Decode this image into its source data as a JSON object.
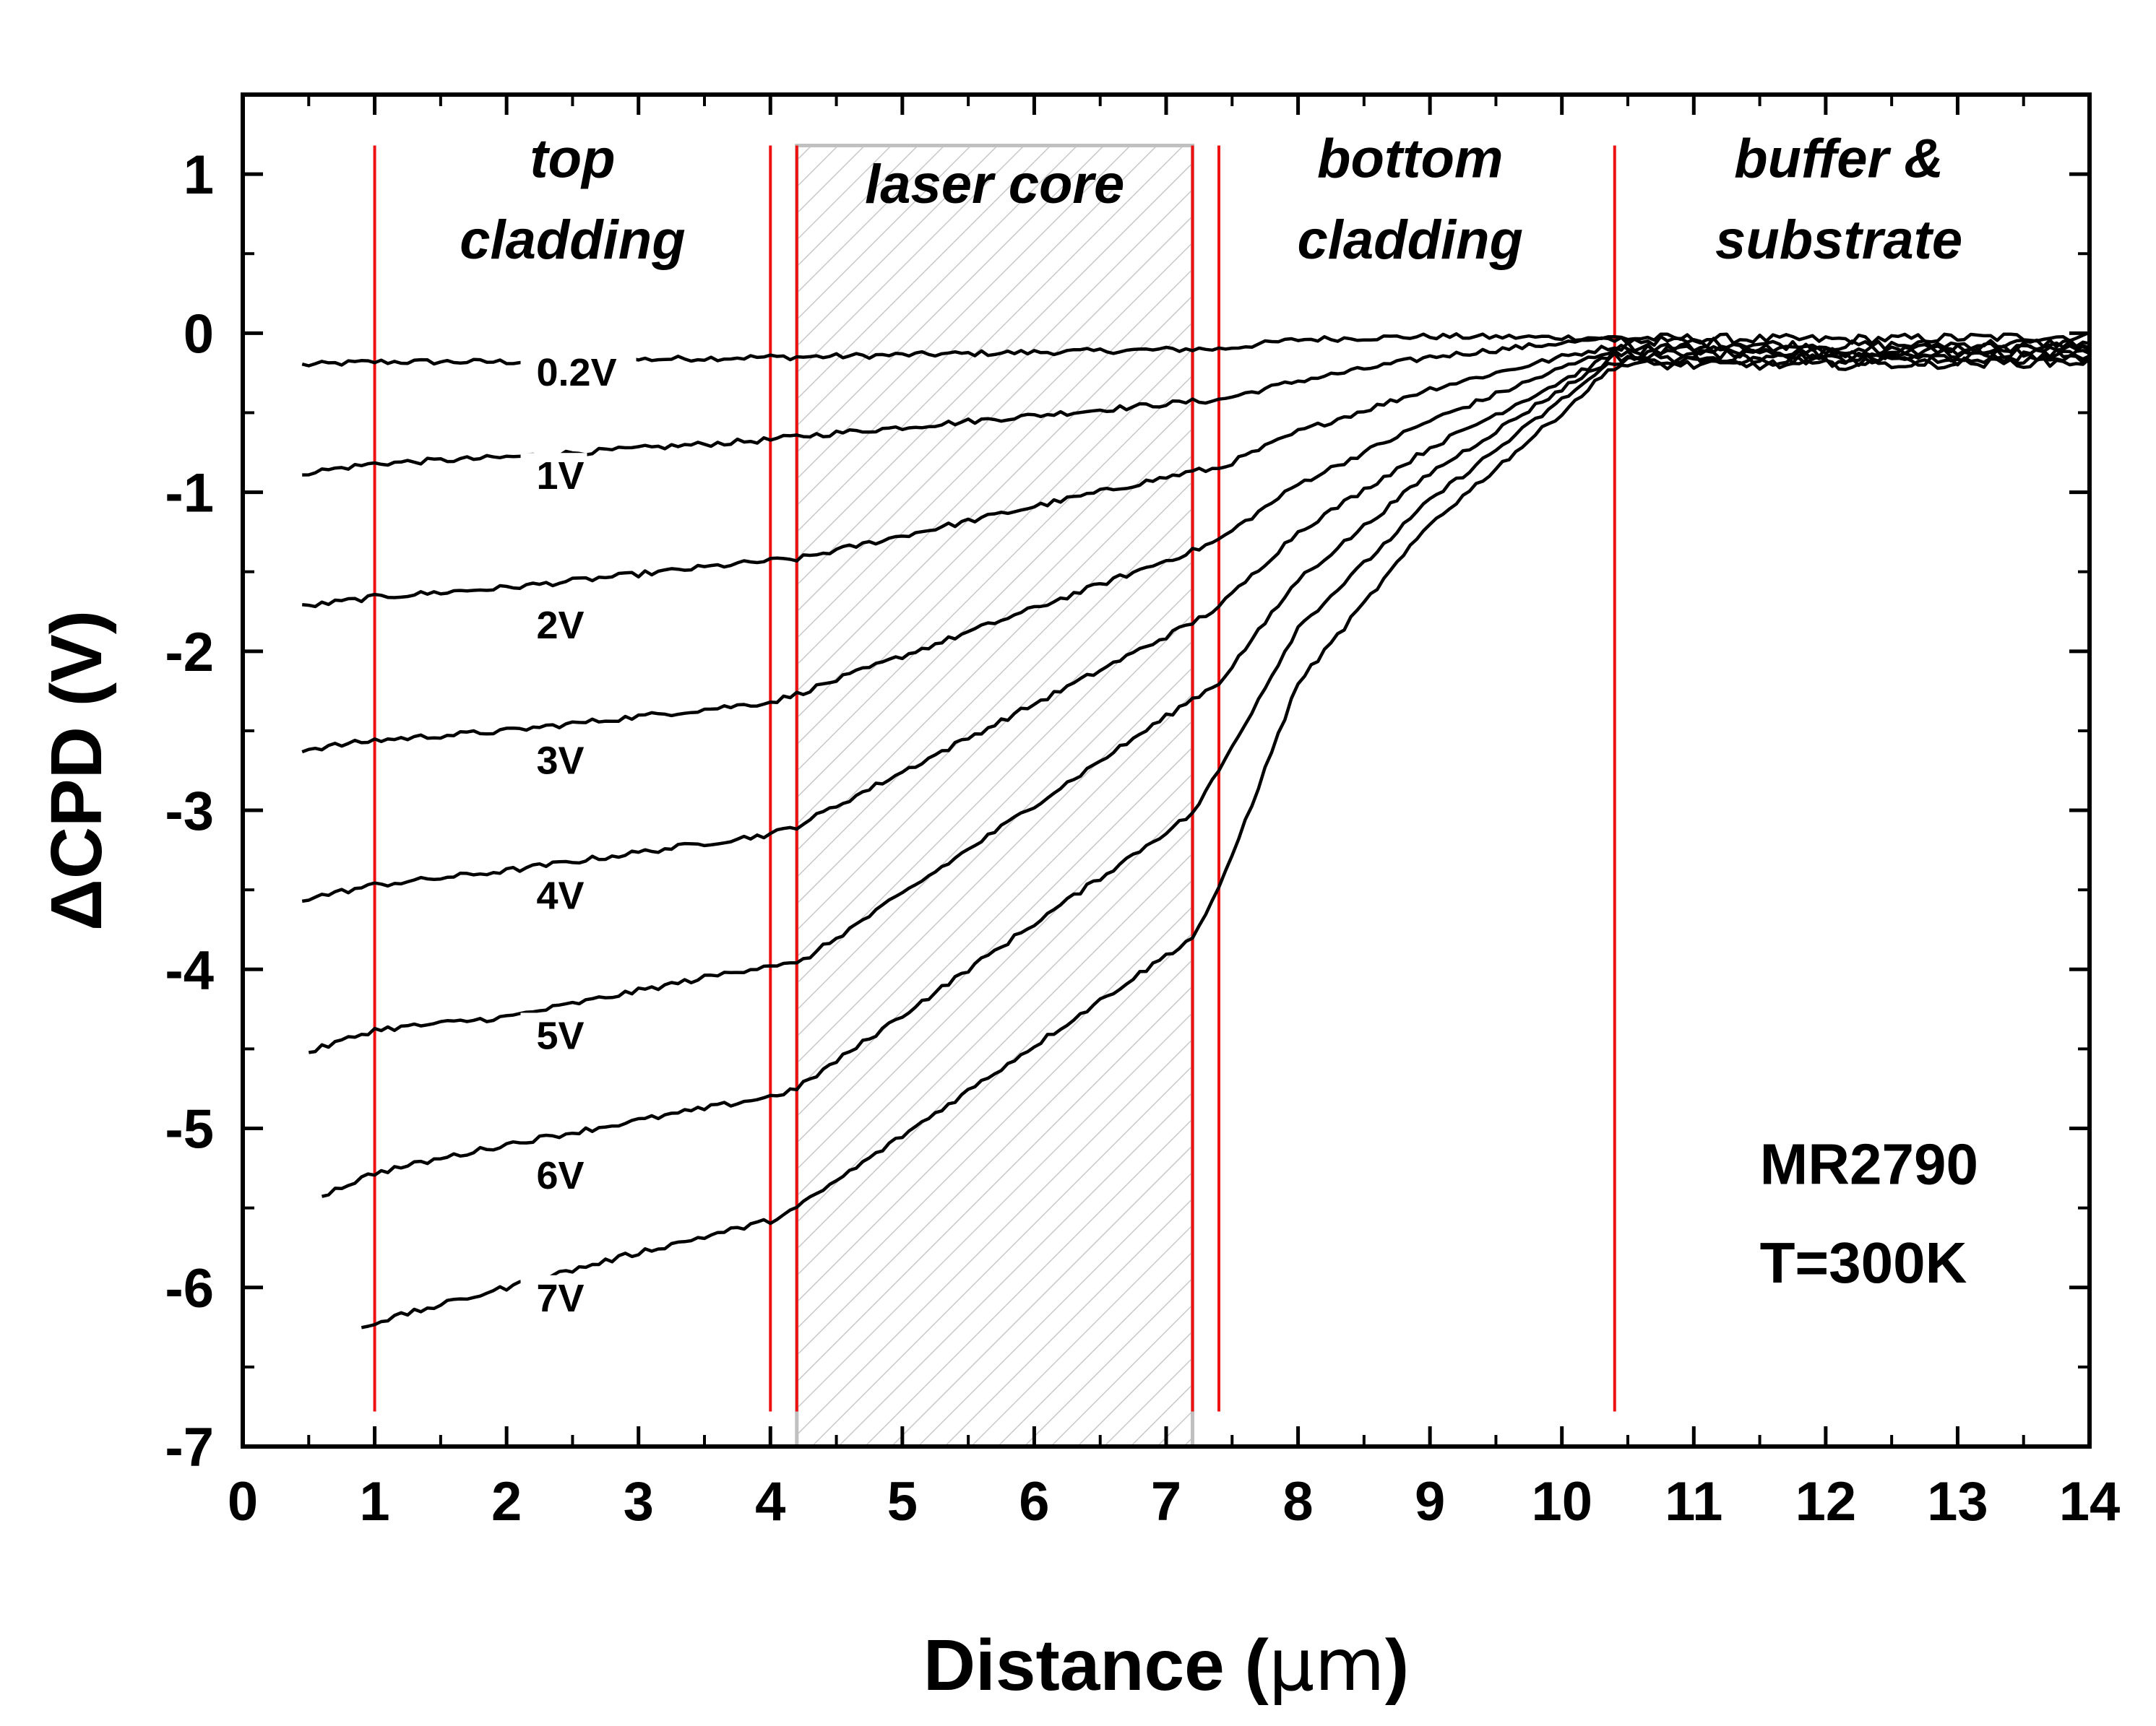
{
  "chart_data": {
    "type": "line",
    "xlabel_main": "Distance (",
    "xlabel_unit": "μm",
    "xlabel_end": ")",
    "ylabel": "ΔCPD (V)",
    "xlim": [
      0,
      14
    ],
    "ylim": [
      -7,
      1.5
    ],
    "x_ticks": [
      "0",
      "1",
      "2",
      "3",
      "4",
      "5",
      "6",
      "7",
      "8",
      "9",
      "10",
      "11",
      "12",
      "13",
      "14"
    ],
    "y_ticks": [
      "1",
      "0",
      "-1",
      "-2",
      "-3",
      "-4",
      "-5",
      "-6",
      "-7"
    ],
    "boundaries_x": [
      1.0,
      4.0,
      4.2,
      7.2,
      7.4,
      10.4
    ],
    "core_region": [
      4.2,
      7.2
    ],
    "regions": [
      {
        "lines": [
          "top",
          "cladding"
        ],
        "x": 2.5
      },
      {
        "lines": [
          "laser core"
        ],
        "x": 5.7
      },
      {
        "lines": [
          "bottom",
          "cladding"
        ],
        "x": 8.85
      },
      {
        "lines": [
          "buffer &",
          "substrate"
        ],
        "x": 12.1
      }
    ],
    "annotation": [
      "MR2790",
      "T=300K"
    ],
    "series": [
      {
        "name": "0.2V",
        "start_x": 0.45,
        "label_xy": [
          2.15,
          -0.33
        ],
        "points": [
          [
            0.45,
            -0.2
          ],
          [
            1.0,
            -0.18
          ],
          [
            2.0,
            -0.18
          ],
          [
            4.0,
            -0.15
          ],
          [
            4.2,
            -0.15
          ],
          [
            7.2,
            -0.1
          ],
          [
            7.4,
            -0.1
          ],
          [
            8.0,
            -0.04
          ],
          [
            9.0,
            -0.02
          ],
          [
            10.4,
            -0.03
          ],
          [
            12.0,
            -0.04
          ],
          [
            14.0,
            -0.02
          ]
        ]
      },
      {
        "name": "1V",
        "start_x": 0.45,
        "label_xy": [
          2.15,
          -0.98
        ],
        "points": [
          [
            0.45,
            -0.88
          ],
          [
            1.0,
            -0.82
          ],
          [
            2.0,
            -0.78
          ],
          [
            4.0,
            -0.67
          ],
          [
            4.2,
            -0.65
          ],
          [
            7.2,
            -0.43
          ],
          [
            7.4,
            -0.42
          ],
          [
            8.0,
            -0.3
          ],
          [
            9.0,
            -0.15
          ],
          [
            10.0,
            -0.06
          ],
          [
            10.4,
            -0.04
          ],
          [
            12.0,
            -0.08
          ],
          [
            14.0,
            -0.06
          ]
        ]
      },
      {
        "name": "2V",
        "start_x": 0.45,
        "label_xy": [
          2.15,
          -1.92
        ],
        "points": [
          [
            0.45,
            -1.72
          ],
          [
            1.0,
            -1.66
          ],
          [
            2.0,
            -1.6
          ],
          [
            4.0,
            -1.43
          ],
          [
            4.2,
            -1.42
          ],
          [
            7.2,
            -0.87
          ],
          [
            7.4,
            -0.85
          ],
          [
            8.0,
            -0.62
          ],
          [
            9.0,
            -0.35
          ],
          [
            10.0,
            -0.15
          ],
          [
            10.4,
            -0.08
          ],
          [
            12.0,
            -0.1
          ],
          [
            14.0,
            -0.08
          ]
        ]
      },
      {
        "name": "3V",
        "start_x": 0.45,
        "label_xy": [
          2.15,
          -2.77
        ],
        "points": [
          [
            0.45,
            -2.62
          ],
          [
            1.0,
            -2.56
          ],
          [
            2.0,
            -2.5
          ],
          [
            4.0,
            -2.32
          ],
          [
            4.2,
            -2.27
          ],
          [
            7.2,
            -1.37
          ],
          [
            7.4,
            -1.3
          ],
          [
            8.0,
            -0.95
          ],
          [
            9.0,
            -0.55
          ],
          [
            10.0,
            -0.22
          ],
          [
            10.4,
            -0.1
          ],
          [
            12.0,
            -0.12
          ],
          [
            14.0,
            -0.1
          ]
        ]
      },
      {
        "name": "4V",
        "start_x": 0.45,
        "label_xy": [
          2.15,
          -3.62
        ],
        "points": [
          [
            0.45,
            -3.56
          ],
          [
            1.0,
            -3.47
          ],
          [
            2.0,
            -3.38
          ],
          [
            4.0,
            -3.15
          ],
          [
            4.2,
            -3.1
          ],
          [
            7.2,
            -1.82
          ],
          [
            7.4,
            -1.72
          ],
          [
            8.0,
            -1.25
          ],
          [
            9.0,
            -0.72
          ],
          [
            10.0,
            -0.3
          ],
          [
            10.4,
            -0.13
          ],
          [
            12.0,
            -0.14
          ],
          [
            14.0,
            -0.12
          ]
        ]
      },
      {
        "name": "5V",
        "start_x": 0.5,
        "label_xy": [
          2.15,
          -4.5
        ],
        "points": [
          [
            0.5,
            -4.52
          ],
          [
            1.0,
            -4.38
          ],
          [
            2.0,
            -4.3
          ],
          [
            4.0,
            -3.97
          ],
          [
            4.2,
            -3.97
          ],
          [
            7.2,
            -2.3
          ],
          [
            7.4,
            -2.2
          ],
          [
            8.0,
            -1.55
          ],
          [
            9.0,
            -0.88
          ],
          [
            10.0,
            -0.35
          ],
          [
            10.4,
            -0.15
          ],
          [
            12.0,
            -0.16
          ],
          [
            14.0,
            -0.14
          ]
        ]
      },
      {
        "name": "6V",
        "start_x": 0.6,
        "label_xy": [
          2.15,
          -5.38
        ],
        "points": [
          [
            0.6,
            -5.42
          ],
          [
            1.0,
            -5.28
          ],
          [
            2.0,
            -5.1
          ],
          [
            4.0,
            -4.8
          ],
          [
            4.2,
            -4.75
          ],
          [
            7.2,
            -3.02
          ],
          [
            7.4,
            -2.75
          ],
          [
            8.0,
            -1.85
          ],
          [
            9.0,
            -1.05
          ],
          [
            10.0,
            -0.42
          ],
          [
            10.4,
            -0.17
          ],
          [
            12.0,
            -0.18
          ],
          [
            14.0,
            -0.16
          ]
        ]
      },
      {
        "name": "7V",
        "start_x": 0.9,
        "label_xy": [
          2.15,
          -6.15
        ],
        "points": [
          [
            0.9,
            -6.25
          ],
          [
            1.0,
            -6.22
          ],
          [
            2.0,
            -6.0
          ],
          [
            3.0,
            -5.78
          ],
          [
            4.0,
            -5.58
          ],
          [
            4.2,
            -5.5
          ],
          [
            7.2,
            -3.8
          ],
          [
            7.4,
            -3.5
          ],
          [
            8.0,
            -2.2
          ],
          [
            9.0,
            -1.2
          ],
          [
            10.0,
            -0.5
          ],
          [
            10.4,
            -0.2
          ],
          [
            12.0,
            -0.2
          ],
          [
            14.0,
            -0.18
          ]
        ]
      }
    ]
  }
}
